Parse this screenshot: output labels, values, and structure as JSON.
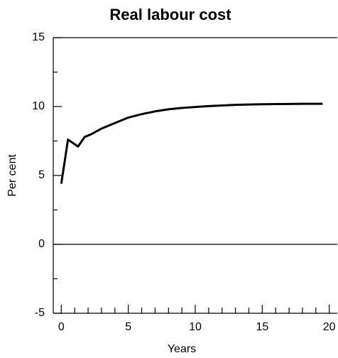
{
  "chart_data": {
    "type": "line",
    "title": "Real labour cost",
    "x_label": "Years",
    "y_label": "Per cent",
    "x": [
      0,
      0.5,
      1.25,
      1.75,
      2.25,
      3,
      4,
      5,
      6,
      7,
      8,
      9,
      10,
      11,
      12,
      13,
      14,
      15,
      16,
      17,
      18,
      19.5
    ],
    "series": [
      {
        "name": "Real labour cost",
        "color": "#000000",
        "values": [
          4.4,
          7.6,
          7.1,
          7.8,
          8.0,
          8.4,
          8.8,
          9.2,
          9.45,
          9.65,
          9.8,
          9.9,
          9.97,
          10.03,
          10.08,
          10.12,
          10.15,
          10.17,
          10.18,
          10.19,
          10.2,
          10.2
        ]
      }
    ],
    "xlim": [
      -0.6,
      20.6
    ],
    "ylim": [
      -5,
      15
    ],
    "xticks": [
      0,
      5,
      10,
      15,
      20
    ],
    "yticks": [
      -5,
      0,
      5,
      10,
      15
    ],
    "xminorticks": [
      1,
      2,
      3,
      4,
      6,
      7,
      8,
      9,
      11,
      12,
      13,
      14,
      16,
      17,
      18,
      19
    ],
    "yminorticks": [
      -2.5,
      2.5,
      7.5,
      12.5
    ],
    "zero_line": true
  }
}
